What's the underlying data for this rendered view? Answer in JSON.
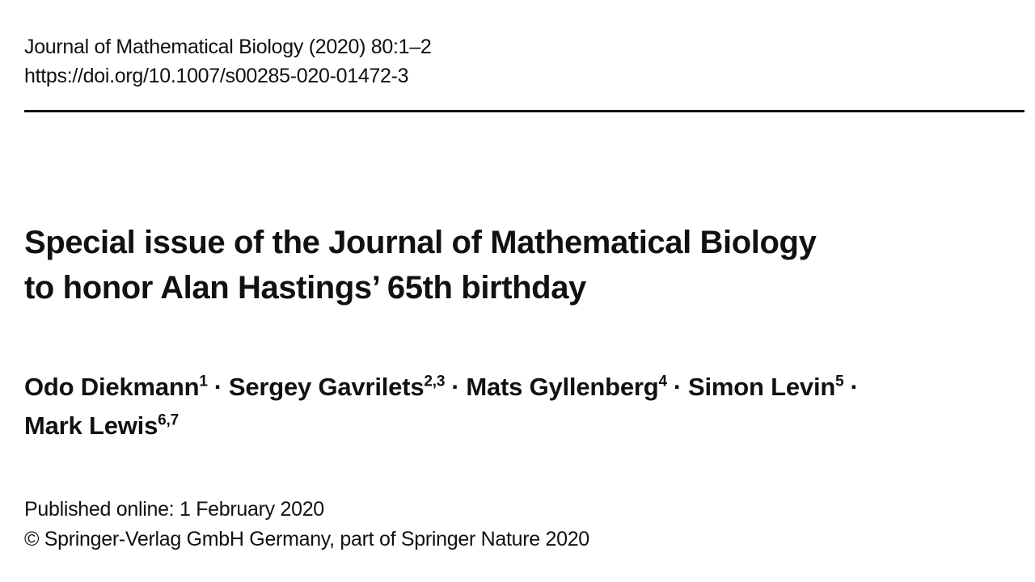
{
  "header": {
    "citation": "Journal of Mathematical Biology (2020) 80:1–2",
    "doi": "https://doi.org/10.1007/s00285-020-01472-3"
  },
  "title": {
    "line1": "Special issue of the Journal of Mathematical Biology",
    "line2": "to honor Alan Hastings’ 65th birthday"
  },
  "authors": [
    {
      "name": "Odo Diekmann",
      "affiliations": "1"
    },
    {
      "name": "Sergey Gavrilets",
      "affiliations": "2,3"
    },
    {
      "name": "Mats Gyllenberg",
      "affiliations": "4"
    },
    {
      "name": "Simon Levin",
      "affiliations": "5"
    },
    {
      "name": "Mark Lewis",
      "affiliations": "6,7"
    }
  ],
  "author_separator": "·",
  "footer": {
    "published": "Published online: 1 February 2020",
    "copyright": "© Springer-Verlag GmbH Germany, part of Springer Nature 2020"
  }
}
